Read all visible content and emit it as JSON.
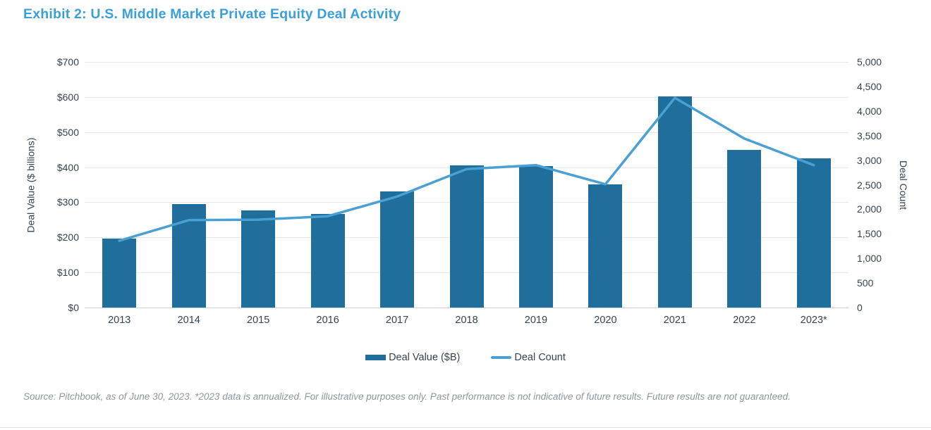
{
  "page": {
    "title": "Exhibit 2: U.S. Middle Market Private Equity Deal Activity",
    "footnote": "Source: Pitchbook, as of June 30, 2023. *2023 data is annualized. For illustrative purposes only. Past performance is not indicative of future results. Future results are not guaranteed."
  },
  "legend": {
    "bar_label": "Deal Value ($B)",
    "line_label": "Deal Count"
  },
  "colors": {
    "bar": "#1f6e9c",
    "line": "#4aa0d2",
    "title": "#3b9fd8",
    "axis_text": "#36454f",
    "gridline": "#e4eaee",
    "baseline": "#ccd4da",
    "footnote_text": "#8e979d",
    "divider": "#e1e4e6"
  },
  "chart_data": {
    "type": "bar+line dual-axis combo",
    "title": "Exhibit 2: U.S. Middle Market Private Equity Deal Activity",
    "categories": [
      "2013",
      "2014",
      "2015",
      "2016",
      "2017",
      "2018",
      "2019",
      "2020",
      "2021",
      "2022",
      "2023*"
    ],
    "series": [
      {
        "name": "Deal Value ($B)",
        "type": "bar",
        "axis": "left",
        "values": [
          197,
          294,
          277,
          266,
          331,
          406,
          404,
          351,
          602,
          449,
          426
        ]
      },
      {
        "name": "Deal Count",
        "type": "line",
        "axis": "right",
        "values": [
          1360,
          1780,
          1790,
          1860,
          2260,
          2820,
          2900,
          2510,
          4270,
          3440,
          2900
        ]
      }
    ],
    "left_axis": {
      "title": "Deal Value ($ billions)",
      "min": 0,
      "max": 700,
      "step": 100,
      "ticks_top_to_bottom": [
        "$700",
        "$600",
        "$500",
        "$400",
        "$300",
        "$200",
        "$100",
        "$0"
      ]
    },
    "right_axis": {
      "title": "Deal Count",
      "min": 0,
      "max": 5000,
      "step": 500,
      "ticks_top_to_bottom": [
        "5,000",
        "4,500",
        "4,000",
        "3,500",
        "3,000",
        "2,500",
        "2,000",
        "1,500",
        "1,000",
        "500",
        "0"
      ]
    },
    "grid": "horizontal gridlines for left axis only",
    "legend_position": "bottom-center"
  }
}
